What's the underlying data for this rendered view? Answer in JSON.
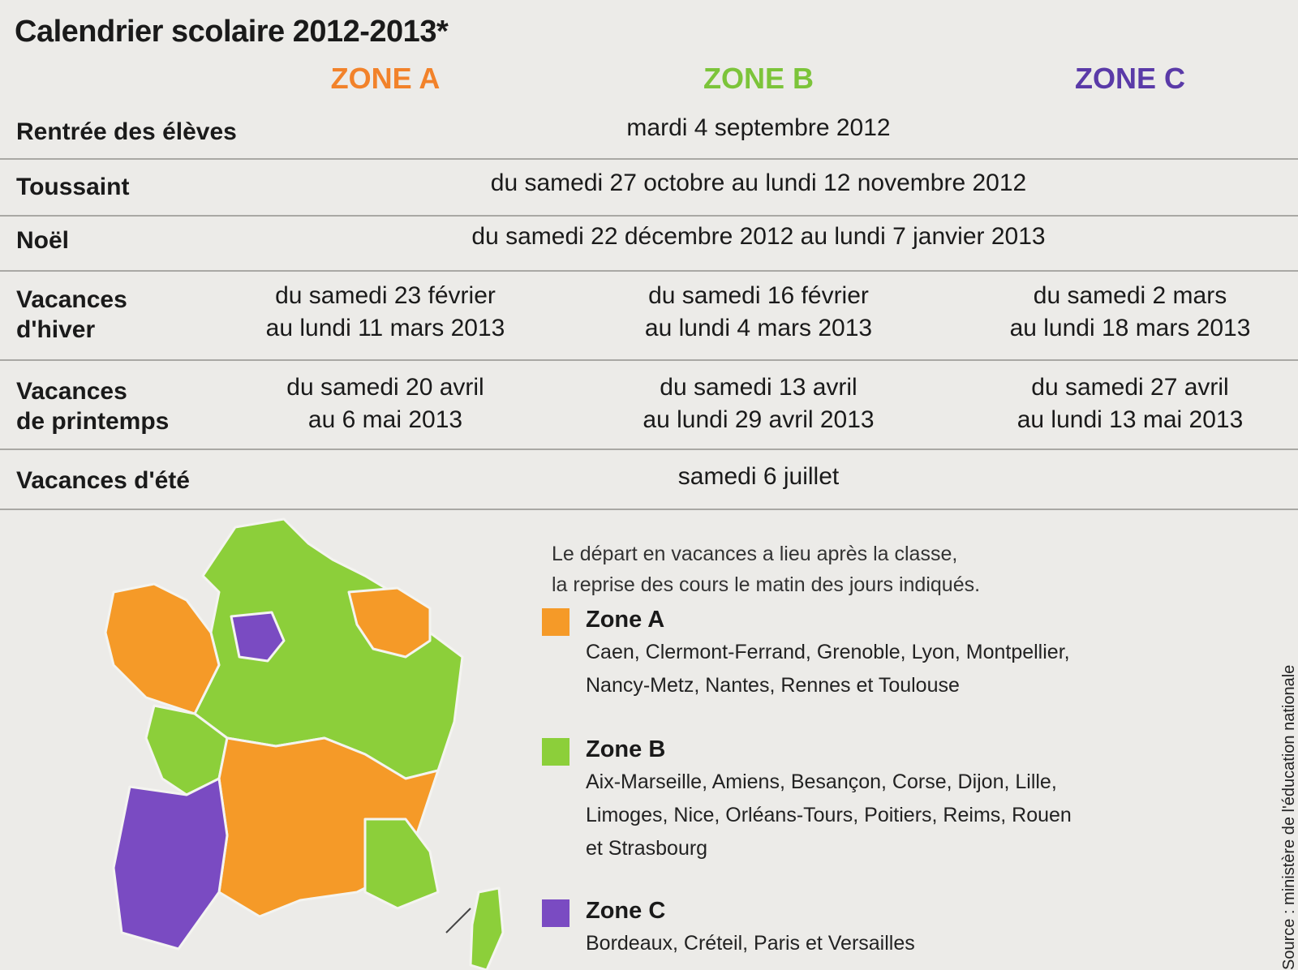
{
  "header": {
    "title": "Calendrier scolaire 2012-2013*",
    "zones": [
      {
        "label": "ZONE A",
        "color": "#f2822a"
      },
      {
        "label": "ZONE B",
        "color": "#7cc43a"
      },
      {
        "label": "ZONE C",
        "color": "#5a3aa8"
      }
    ]
  },
  "table": {
    "rows": [
      {
        "label": [
          "Rentrée des élèves"
        ],
        "cells": [
          [
            "mardi 4 septembre 2012"
          ]
        ]
      },
      {
        "label": [
          "Toussaint"
        ],
        "cells": [
          [
            "du samedi 27 octobre au lundi 12 novembre 2012"
          ]
        ]
      },
      {
        "label": [
          "Noël"
        ],
        "cells": [
          [
            "du samedi 22 décembre 2012 au lundi 7 janvier 2013"
          ]
        ]
      },
      {
        "label": [
          "Vacances",
          "d'hiver"
        ],
        "cells": [
          [
            "du samedi 23 février",
            "au lundi 11 mars 2013"
          ],
          [
            "du samedi 16 février",
            "au lundi 4 mars 2013"
          ],
          [
            "du samedi 2 mars",
            "au lundi 18 mars 2013"
          ]
        ]
      },
      {
        "label": [
          "Vacances",
          "de printemps"
        ],
        "cells": [
          [
            "du samedi 20 avril",
            "au 6 mai 2013"
          ],
          [
            "du samedi 13 avril",
            "au lundi 29 avril 2013"
          ],
          [
            "du samedi 27 avril",
            "au lundi 13 mai 2013"
          ]
        ]
      },
      {
        "label": [
          "Vacances d'été"
        ],
        "cells": [
          [
            "samedi 6 juillet"
          ]
        ]
      }
    ]
  },
  "note": [
    "Le départ en vacances a lieu après la classe,",
    "la reprise des cours le matin des jours indiqués."
  ],
  "legend": [
    {
      "name": "Zone A",
      "color": "#f59a28",
      "lines": [
        "Caen, Clermont-Ferrand, Grenoble, Lyon, Montpellier,",
        "Nancy-Metz, Nantes, Rennes et Toulouse"
      ]
    },
    {
      "name": "Zone B",
      "color": "#8ccf3a",
      "lines": [
        "Aix-Marseille, Amiens, Besançon, Corse, Dijon, Lille,",
        "Limoges, Nice, Orléans-Tours, Poitiers, Reims, Rouen",
        "et Strasbourg"
      ]
    },
    {
      "name": "Zone C",
      "color": "#7a4bc2",
      "lines": [
        "Bordeaux, Créteil, Paris et Versailles"
      ]
    }
  ],
  "source": "Source : ministère de l'éducation nationale"
}
